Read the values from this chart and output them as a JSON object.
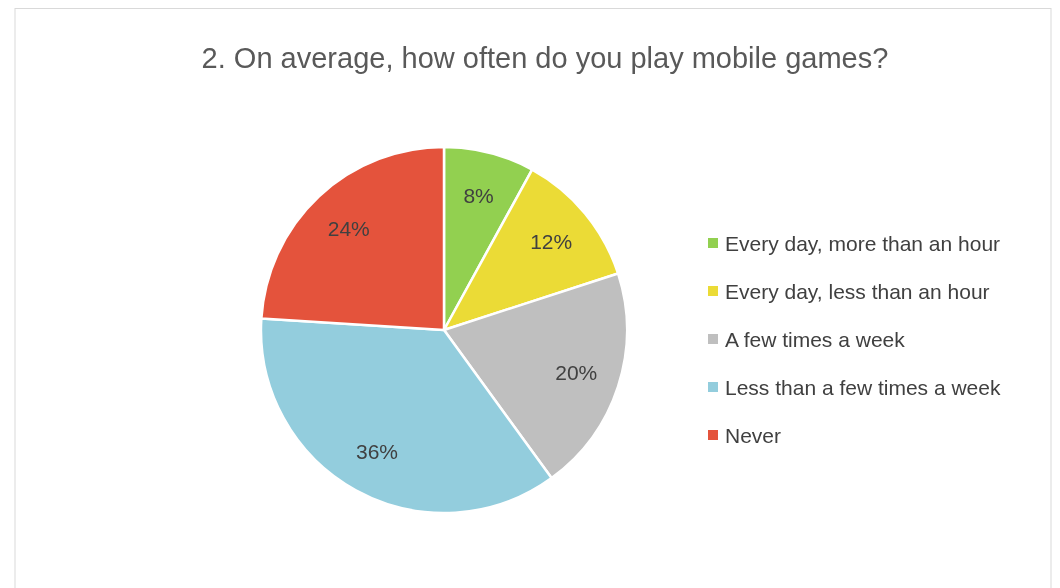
{
  "chart_data": {
    "type": "pie",
    "title": "2. On average, how often do you play mobile games?",
    "categories": [
      "Every day, more than an hour",
      "Every day, less than an hour",
      "A few times a week",
      "Less than a few times a week",
      "Never"
    ],
    "values": [
      8,
      12,
      20,
      36,
      24
    ],
    "colors": [
      "#92d050",
      "#ebdb36",
      "#bfbfbf",
      "#93cddd",
      "#e4533c"
    ],
    "value_labels": [
      "8%",
      "12%",
      "20%",
      "36%",
      "24%"
    ],
    "legend": "right"
  }
}
